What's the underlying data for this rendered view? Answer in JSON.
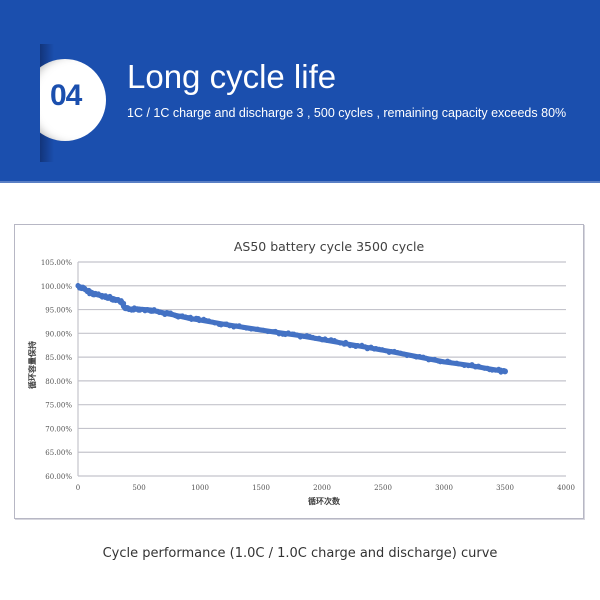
{
  "banner": {
    "badge_number": "04",
    "title": "Long cycle life",
    "subtitle": "1C / 1C charge and discharge 3 , 500 cycles , remaining capacity exceeds 80%",
    "background_color": "#1b4fae"
  },
  "caption": "Cycle performance (1.0C / 1.0C charge and discharge) curve",
  "chart_data": {
    "type": "scatter",
    "title": "AS50 battery cycle 3500 cycle",
    "xlabel": "循环次数",
    "ylabel": "循环容量保持",
    "xlim": [
      0,
      4000
    ],
    "ylim": [
      0.6,
      1.05
    ],
    "x_ticks": [
      "0",
      "500",
      "1000",
      "1500",
      "2000",
      "2500",
      "3000",
      "3500",
      "4000"
    ],
    "y_ticks": [
      "60.00%",
      "65.00%",
      "70.00%",
      "75.00%",
      "80.00%",
      "85.00%",
      "90.00%",
      "95.00%",
      "100.00%",
      "105.00%"
    ],
    "grid": "horizontal",
    "legend": "none",
    "series_color": "#4472c4",
    "series": [
      {
        "name": "Capacity retention",
        "x": [
          0,
          50,
          100,
          150,
          200,
          260,
          300,
          360,
          385,
          450,
          500,
          600,
          700,
          800,
          900,
          1000,
          1200,
          1400,
          1600,
          1800,
          2000,
          2200,
          2400,
          2600,
          2800,
          3000,
          3200,
          3400,
          3500
        ],
        "y": [
          100.0,
          99.3,
          98.6,
          98.2,
          97.8,
          97.5,
          97.2,
          96.6,
          95.2,
          95.1,
          95.1,
          94.9,
          94.3,
          93.8,
          93.2,
          92.8,
          91.9,
          91.1,
          90.3,
          89.6,
          88.7,
          87.8,
          86.9,
          86.0,
          85.0,
          84.0,
          83.3,
          82.4,
          82.0
        ]
      }
    ]
  }
}
